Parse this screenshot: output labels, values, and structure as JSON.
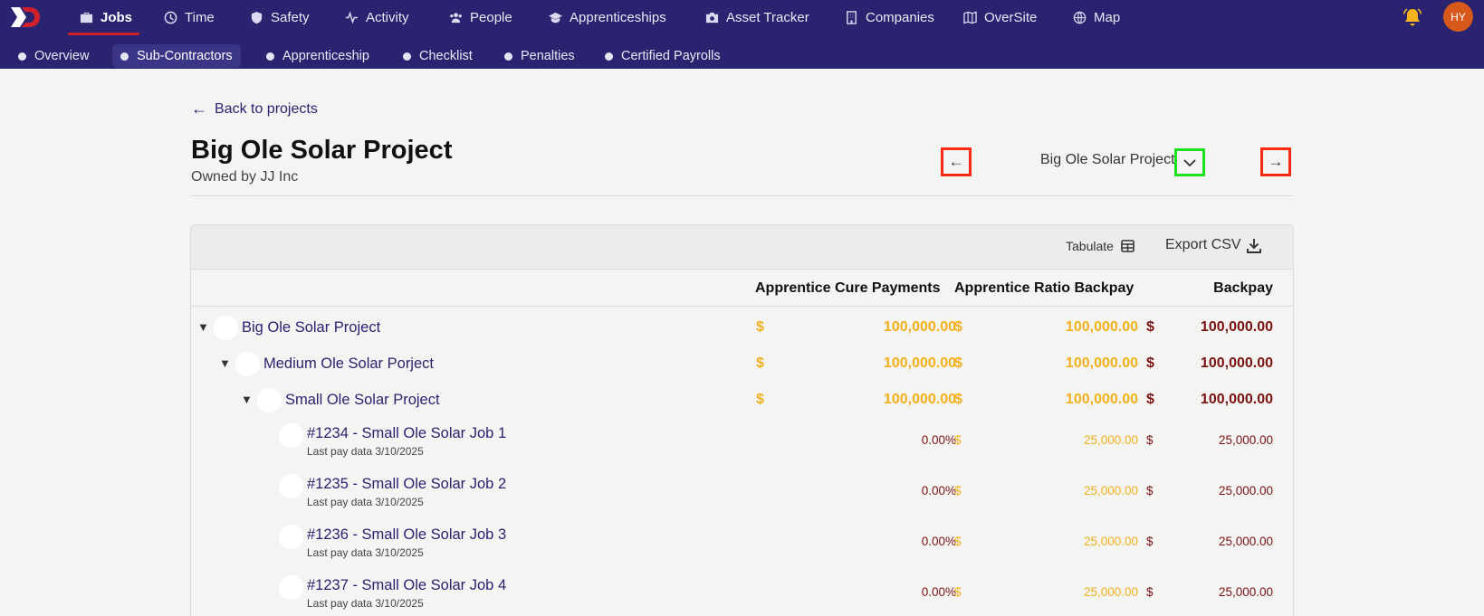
{
  "topnav": {
    "items": [
      {
        "label": "Jobs",
        "icon": "briefcase-icon",
        "active": true
      },
      {
        "label": "Time",
        "icon": "clock-icon"
      },
      {
        "label": "Safety",
        "icon": "shield-icon"
      },
      {
        "label": "Activity",
        "icon": "activity-icon"
      },
      {
        "label": "People",
        "icon": "people-icon"
      },
      {
        "label": "Apprenticeships",
        "icon": "graduation-cap-icon"
      },
      {
        "label": "Asset Tracker",
        "icon": "camera-icon"
      },
      {
        "label": "Companies",
        "icon": "building-icon"
      },
      {
        "label": "OverSite",
        "icon": "map-fold-icon"
      },
      {
        "label": "Map",
        "icon": "globe-icon"
      }
    ],
    "avatar_initials": "HY"
  },
  "subnav": {
    "items": [
      {
        "label": "Overview"
      },
      {
        "label": "Sub-Contractors",
        "active": true
      },
      {
        "label": "Apprenticeship"
      },
      {
        "label": "Checklist"
      },
      {
        "label": "Penalties"
      },
      {
        "label": "Certified Payrolls"
      }
    ]
  },
  "header": {
    "back_label": "Back to projects",
    "title": "Big Ole Solar Project",
    "owner": "Owned by JJ Inc",
    "selector_value": "Big Ole Solar Project"
  },
  "toolbar": {
    "tabulate_label": "Tabulate",
    "export_label": "Export CSV"
  },
  "table": {
    "columns": [
      "Apprentice Cure Payments",
      "Apprentice Ratio Backpay",
      "Backpay"
    ],
    "currency": "$",
    "groups": [
      {
        "name": "Big Ole Solar Project",
        "c1": "100,000.00",
        "c2": "100,000.00",
        "c3": "100,000.00"
      },
      {
        "name": "Medium Ole Solar Porject",
        "c1": "100,000.00",
        "c2": "100,000.00",
        "c3": "100,000.00"
      },
      {
        "name": "Small Ole Solar Project",
        "c1": "100,000.00",
        "c2": "100,000.00",
        "c3": "100,000.00"
      }
    ],
    "jobs": [
      {
        "name": "#1234 - Small Ole Solar Job 1",
        "sub": "Last pay data 3/10/2025",
        "pct": "0.00%",
        "c2": "25,000.00",
        "c3": "25,000.00"
      },
      {
        "name": "#1235 - Small Ole Solar Job 2",
        "sub": "Last pay data 3/10/2025",
        "pct": "0.00%",
        "c2": "25,000.00",
        "c3": "25,000.00"
      },
      {
        "name": "#1236 - Small Ole Solar Job 3",
        "sub": "Last pay data 3/10/2025",
        "pct": "0.00%",
        "c2": "25,000.00",
        "c3": "25,000.00"
      },
      {
        "name": "#1237 - Small Ole Solar Job 4",
        "sub": "Last pay data 3/10/2025",
        "pct": "0.00%",
        "c2": "25,000.00",
        "c3": "25,000.00"
      }
    ]
  },
  "colors": {
    "nav_bg": "#2a2370",
    "gold": "#f2b01e",
    "maroon": "#7a1212",
    "nav_button_highlight": "#ff2a10",
    "dropdown_highlight": "#1ee01e"
  }
}
